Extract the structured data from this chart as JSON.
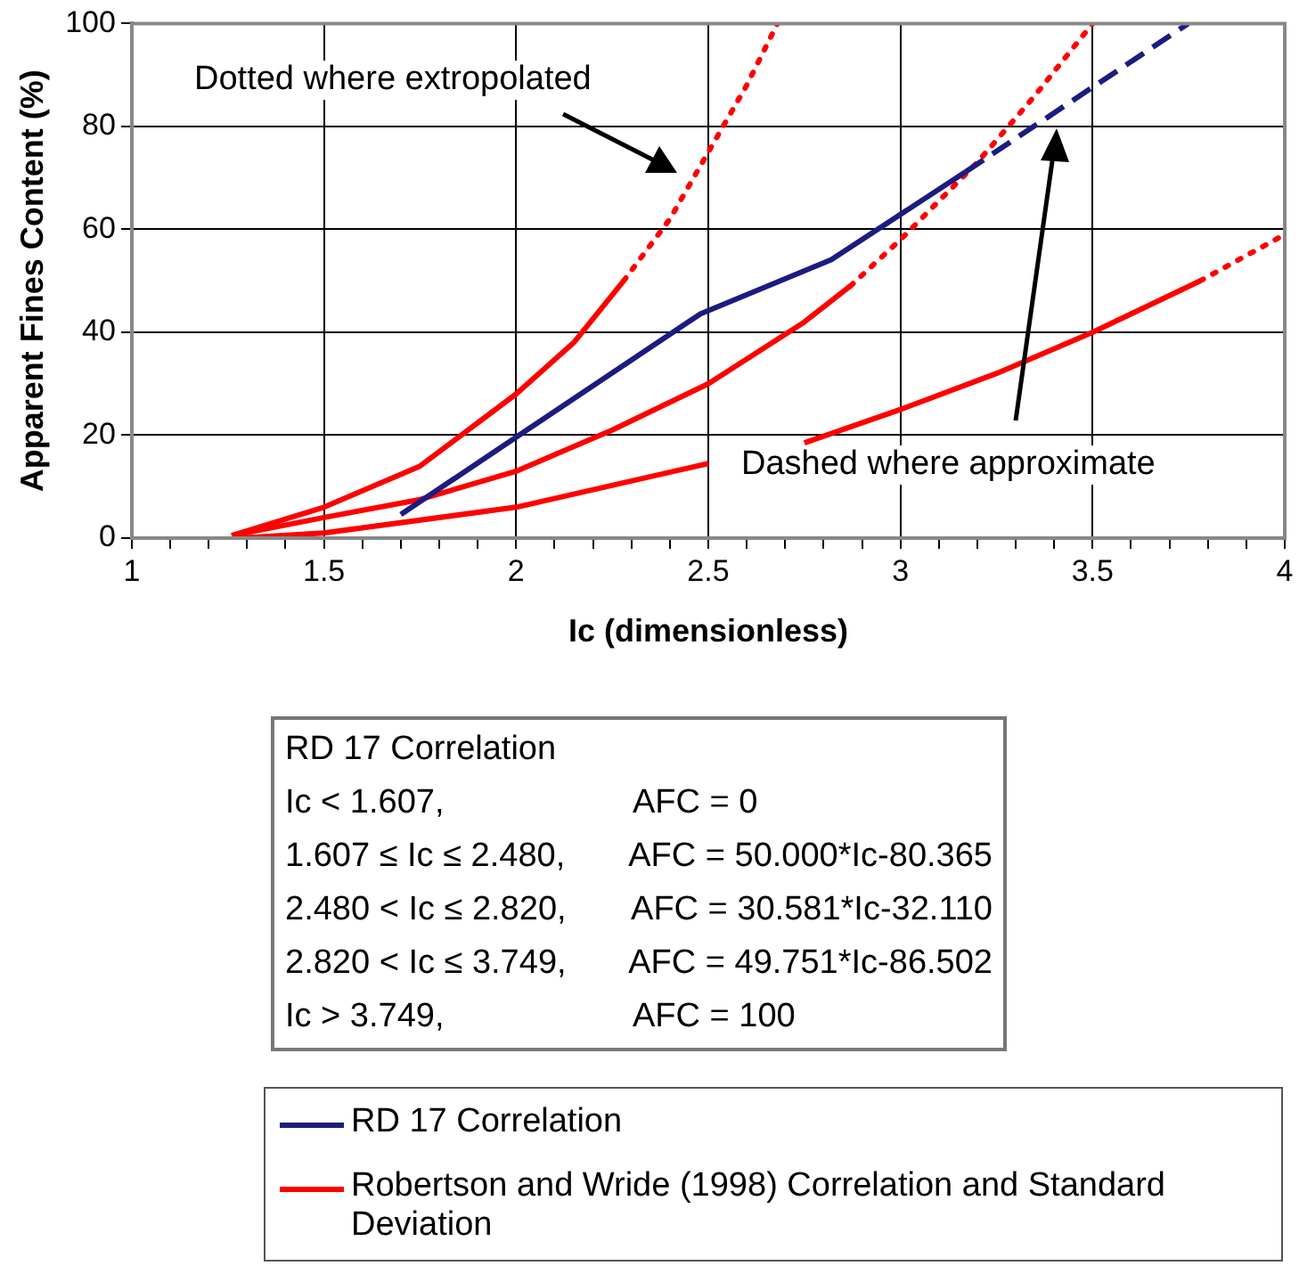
{
  "chart_data": {
    "type": "line",
    "xlabel": "Ic (dimensionless)",
    "ylabel": "Apparent Fines Content (%)",
    "xlim": [
      1,
      4
    ],
    "ylim": [
      0,
      100
    ],
    "xticks": [
      1,
      {
        "value": 1.1,
        "label": null
      },
      {
        "value": 1.2,
        "label": null
      },
      {
        "value": 1.3,
        "label": null
      },
      {
        "value": 1.4,
        "label": null
      },
      1.5,
      {
        "value": 1.6,
        "label": null
      },
      {
        "value": 1.7,
        "label": null
      },
      {
        "value": 1.8,
        "label": null
      },
      {
        "value": 1.9,
        "label": null
      },
      2,
      {
        "value": 2.1,
        "label": null
      },
      {
        "value": 2.2,
        "label": null
      },
      {
        "value": 2.3,
        "label": null
      },
      {
        "value": 2.4,
        "label": null
      },
      2.5,
      {
        "value": 2.6,
        "label": null
      },
      {
        "value": 2.7,
        "label": null
      },
      {
        "value": 2.8,
        "label": null
      },
      {
        "value": 2.9,
        "label": null
      },
      3,
      {
        "value": 3.1,
        "label": null
      },
      {
        "value": 3.2,
        "label": null
      },
      {
        "value": 3.3,
        "label": null
      },
      {
        "value": 3.4,
        "label": null
      },
      3.5,
      {
        "value": 3.6,
        "label": null
      },
      {
        "value": 3.7,
        "label": null
      },
      {
        "value": 3.8,
        "label": null
      },
      {
        "value": 3.9,
        "label": null
      },
      4
    ],
    "yticks": [
      0,
      20,
      40,
      60,
      80,
      100
    ],
    "grid": true,
    "legend": "bottom",
    "marker": "none",
    "series": [
      {
        "name": "RD 17 Correlation",
        "color": "#1c1c80",
        "line_style": "solid",
        "x": [
          1.7,
          2.0,
          2.48,
          2.82,
          3.17
        ],
        "values": [
          4.6,
          19.6,
          43.6,
          54.1,
          71.2
        ]
      },
      {
        "color": "#1c1c80",
        "line_style": "dashed",
        "x": [
          3.17,
          3.749
        ],
        "values": [
          71.2,
          100
        ]
      },
      {
        "name": "Robertson and Wride (1998) Correlation and Standard Deviation",
        "color": "#ff0000",
        "line_style": "solid",
        "x": [
          1.26,
          1.5,
          1.75,
          2.0,
          2.25,
          2.5,
          2.75,
          2.87
        ],
        "values": [
          0.5,
          4,
          7.5,
          13,
          21,
          30,
          42,
          49
        ]
      },
      {
        "color": "#ff0000",
        "line_style": "dotted",
        "x": [
          2.87,
          3.0,
          3.2,
          3.35,
          3.5
        ],
        "values": [
          49,
          58,
          73,
          86,
          100
        ]
      },
      {
        "color": "#ff0000",
        "line_style": "solid",
        "x": [
          1.26,
          1.5,
          1.75,
          2.0,
          2.15,
          2.28
        ],
        "values": [
          0.5,
          6,
          14,
          28,
          38,
          50
        ]
      },
      {
        "color": "#ff0000",
        "line_style": "dotted",
        "x": [
          2.28,
          2.4,
          2.5,
          2.6,
          2.68
        ],
        "values": [
          50,
          62,
          75,
          88,
          100
        ]
      },
      {
        "color": "#ff0000",
        "line_style": "solid",
        "x": [
          1.28,
          1.5,
          2.0,
          2.5,
          2.6,
          2.75,
          3.0,
          3.25,
          3.5,
          3.78
        ],
        "values": [
          0,
          1,
          6,
          14.5,
          null,
          18.5,
          25,
          32,
          40,
          50
        ]
      },
      {
        "color": "#ff0000",
        "line_style": "dotted",
        "x": [
          3.78,
          4.0
        ],
        "values": [
          50,
          59
        ]
      }
    ],
    "annotations": [
      "Dotted where extropolated",
      "Dashed where approximate",
      "RD 17 Correlation",
      "Ic < 1.607, AFC = 0",
      "1.607 ≤ Ic ≤ 2.480, AFC = 50.000*Ic-80.365",
      "2.480 < Ic ≤ 2.820, AFC = 30.581*Ic-32.110",
      "2.820 < Ic ≤ 3.749, AFC = 49.751*Ic-86.502",
      "Ic > 3.749, AFC = 100"
    ]
  }
}
